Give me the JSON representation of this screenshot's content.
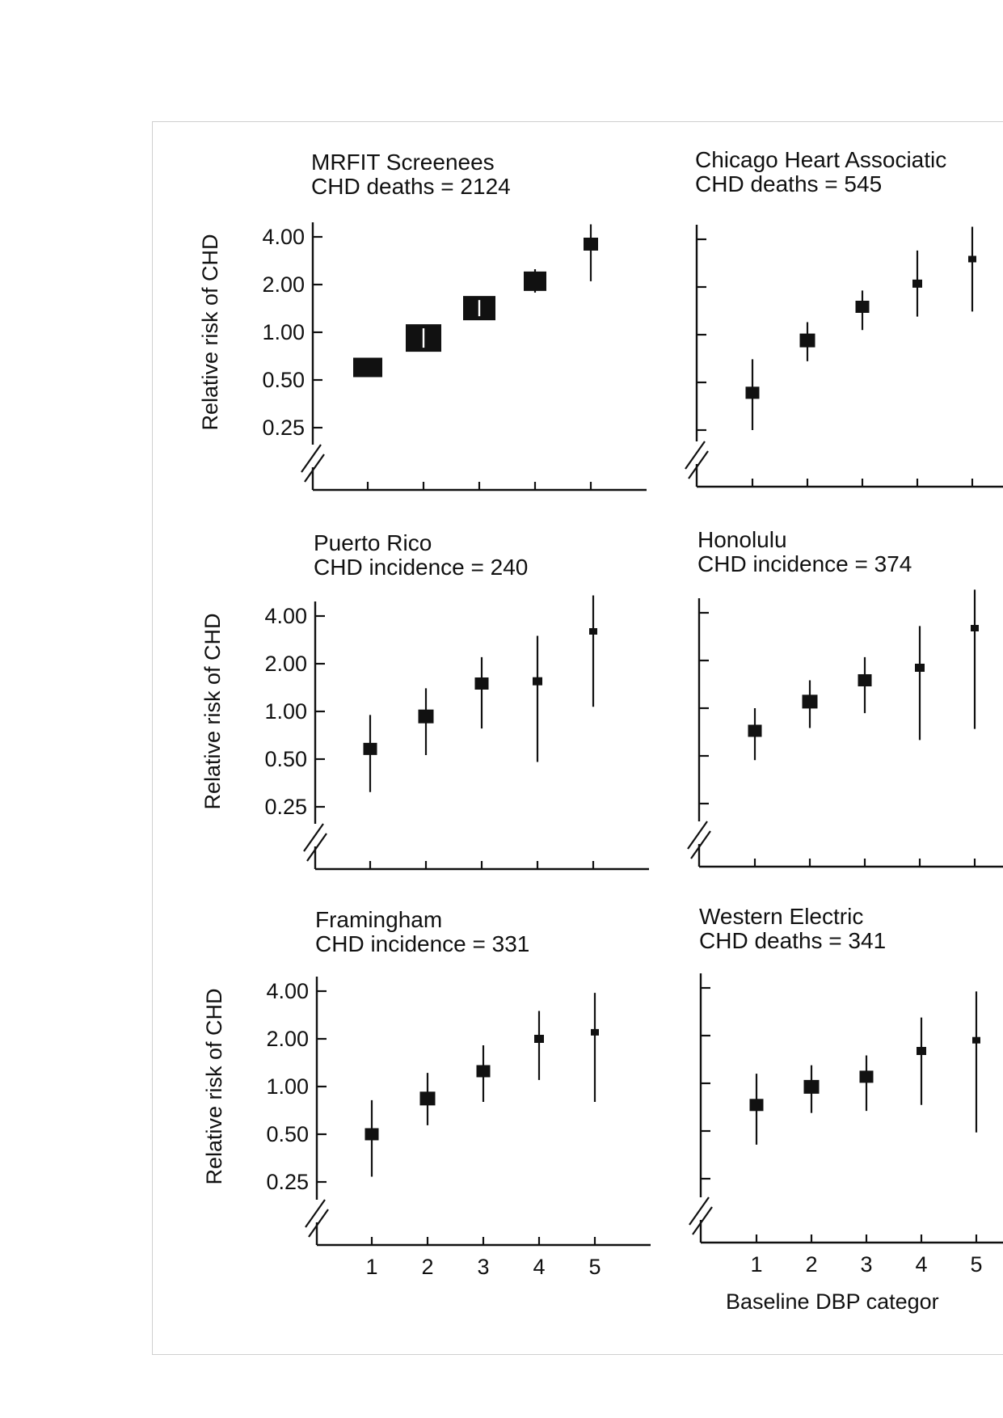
{
  "chart_data": [
    {
      "type": "scatter",
      "title": "MRFIT Screenees",
      "subtitle": "CHD deaths = 2124",
      "ylabel": "Relative risk of CHD",
      "xlabel": "",
      "y_scale": "log2",
      "yticks": [
        "4.00",
        "2.00",
        "1.00",
        "0.50",
        "0.25"
      ],
      "xticks": [],
      "x": [
        1,
        2,
        3,
        4,
        5
      ],
      "series": [
        {
          "values": [
            0.6,
            0.92,
            1.42,
            2.1,
            3.6
          ],
          "ci_low": [
            0.56,
            0.8,
            1.25,
            1.78,
            2.1
          ],
          "ci_high": [
            0.65,
            1.05,
            1.6,
            2.5,
            4.8
          ]
        }
      ]
    },
    {
      "type": "scatter",
      "title": "Chicago Heart Associatic",
      "subtitle": "CHD deaths = 545",
      "ylabel": "",
      "xlabel": "",
      "y_scale": "log2",
      "yticks": [
        "",
        "",
        "",
        "",
        ""
      ],
      "xticks": [],
      "x": [
        1,
        2,
        3,
        4,
        5
      ],
      "series": [
        {
          "values": [
            0.43,
            0.92,
            1.5,
            2.1,
            3.0
          ],
          "ci_low": [
            0.25,
            0.68,
            1.07,
            1.3,
            1.4
          ],
          "ci_high": [
            0.7,
            1.2,
            1.9,
            3.4,
            4.8
          ]
        }
      ]
    },
    {
      "type": "scatter",
      "title": "Puerto Rico",
      "subtitle": "CHD incidence = 240",
      "ylabel": "Relative risk of CHD",
      "xlabel": "",
      "y_scale": "log2",
      "yticks": [
        "4.00",
        "2.00",
        "1.00",
        "0.50",
        "0.25"
      ],
      "xticks": [],
      "x": [
        1,
        2,
        3,
        4,
        5
      ],
      "series": [
        {
          "values": [
            0.58,
            0.93,
            1.5,
            1.55,
            3.2
          ],
          "ci_low": [
            0.31,
            0.53,
            0.78,
            0.48,
            1.07
          ],
          "ci_high": [
            0.95,
            1.4,
            2.2,
            3.0,
            5.4
          ]
        }
      ]
    },
    {
      "type": "scatter",
      "title": "Honolulu",
      "subtitle": "CHD incidence = 374",
      "ylabel": "",
      "xlabel": "",
      "y_scale": "log2",
      "yticks": [
        "",
        "",
        "",
        "",
        ""
      ],
      "xticks": [],
      "x": [
        1,
        2,
        3,
        4,
        5
      ],
      "series": [
        {
          "values": [
            0.72,
            1.1,
            1.5,
            1.8,
            3.2
          ],
          "ci_low": [
            0.47,
            0.75,
            0.93,
            0.63,
            0.74
          ],
          "ci_high": [
            1.0,
            1.5,
            2.1,
            3.3,
            5.6
          ]
        }
      ]
    },
    {
      "type": "scatter",
      "title": "Framingham",
      "subtitle": "CHD incidence = 331",
      "ylabel": "Relative risk of CHD",
      "xlabel": "",
      "y_scale": "log2",
      "yticks": [
        "4.00",
        "2.00",
        "1.00",
        "0.50",
        "0.25"
      ],
      "xticks": [
        "1",
        "2",
        "3",
        "4",
        "5"
      ],
      "x": [
        1,
        2,
        3,
        4,
        5
      ],
      "series": [
        {
          "values": [
            0.5,
            0.84,
            1.25,
            2.0,
            2.2
          ],
          "ci_low": [
            0.27,
            0.57,
            0.8,
            1.1,
            0.8
          ],
          "ci_high": [
            0.82,
            1.22,
            1.82,
            3.0,
            3.9
          ]
        }
      ]
    },
    {
      "type": "scatter",
      "title": "Western Electric",
      "subtitle": "CHD deaths = 341",
      "ylabel": "",
      "xlabel": "Baseline DBP categor",
      "y_scale": "log2",
      "yticks": [
        "",
        "",
        "",
        "",
        ""
      ],
      "xticks": [
        "1",
        "2",
        "3",
        "4",
        "5"
      ],
      "x": [
        1,
        2,
        3,
        4,
        5
      ],
      "series": [
        {
          "values": [
            0.73,
            0.95,
            1.1,
            1.6,
            1.87
          ],
          "ci_low": [
            0.41,
            0.65,
            0.67,
            0.73,
            0.49
          ],
          "ci_high": [
            1.15,
            1.3,
            1.5,
            2.6,
            3.8
          ]
        }
      ]
    }
  ]
}
